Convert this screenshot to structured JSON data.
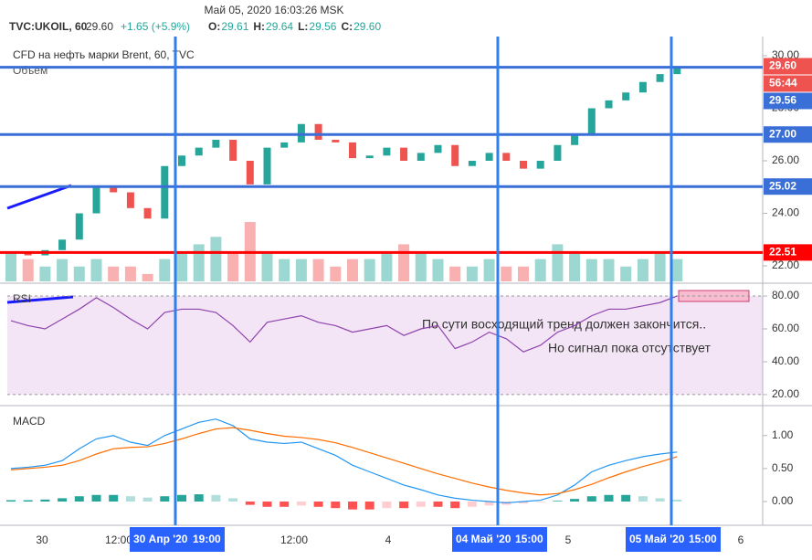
{
  "header": {
    "datetime": "Май 05, 2020 16:03:26 MSK",
    "symbol": "TVC:UKOIL, 60",
    "last": "29.60",
    "change": "+1.65 (+5.9%)",
    "ohlc": [
      {
        "key": "O:",
        "value": "29.61"
      },
      {
        "key": "H:",
        "value": "29.64"
      },
      {
        "key": "L:",
        "value": "29.56"
      },
      {
        "key": "C:",
        "value": "29.60"
      }
    ]
  },
  "price": {
    "title": "CFD на нефть марки Brent, 60, TVC",
    "volume_title": "Объем",
    "ylim": [
      21.41,
      30.73
    ],
    "yticks": [
      {
        "value": 30,
        "label": "30.00"
      },
      {
        "value": 28,
        "label": "28.00"
      },
      {
        "value": 26,
        "label": "26.00"
      },
      {
        "value": 24,
        "label": "24.00"
      },
      {
        "value": 22,
        "label": "22.00"
      }
    ],
    "up_color": "#26a69a",
    "down_color": "#ef5350",
    "close": [
      22.5,
      22.4,
      22.6,
      23.0,
      24.0,
      25.0,
      24.8,
      24.2,
      23.8,
      25.8,
      26.2,
      26.5,
      26.8,
      26.0,
      25.1,
      26.5,
      26.7,
      27.4,
      26.8,
      26.7,
      26.1,
      26.2,
      26.5,
      26.0,
      26.3,
      26.6,
      25.8,
      26.0,
      26.3,
      26.0,
      25.7,
      26.0,
      26.6,
      27.0,
      28.0,
      28.3,
      28.6,
      29.0,
      29.3,
      29.6
    ],
    "volume": [
      4,
      3,
      2,
      3,
      2,
      3,
      2,
      2,
      1,
      3,
      4,
      5,
      6,
      4,
      8,
      4,
      3,
      3,
      3,
      2,
      3,
      3,
      4,
      5,
      4,
      3,
      2,
      2,
      3,
      2,
      2,
      3,
      5,
      4,
      3,
      3,
      2,
      3,
      4,
      3
    ],
    "volume_ylim": [
      0,
      33
    ],
    "last": {
      "value": 29.6,
      "label": "29.60",
      "color": "#ef5350"
    },
    "countdown": "56:44",
    "levels": [
      {
        "value": 29.56,
        "label": "29.56",
        "color": "#3a6fd8"
      },
      {
        "value": 27,
        "label": "27.00",
        "color": "#3a6fd8"
      },
      {
        "value": 25.02,
        "label": "25.02",
        "color": "#3a6fd8"
      },
      {
        "value": 22.51,
        "label": "22.51",
        "color": "#ff0000"
      }
    ]
  },
  "rsi": {
    "title": "RSI",
    "ylim": [
      14.4,
      86.7
    ],
    "color": "#8e44ad",
    "yticks": [
      {
        "value": 80,
        "label": "80.00"
      },
      {
        "value": 60,
        "label": "60.00"
      },
      {
        "value": 40,
        "label": "40.00"
      },
      {
        "value": 20,
        "label": "20.00"
      }
    ],
    "values": [
      65,
      62,
      60,
      66,
      72,
      79,
      73,
      66,
      60,
      70,
      72,
      72,
      70,
      62,
      52,
      64,
      66,
      68,
      64,
      62,
      58,
      60,
      62,
      56,
      60,
      62,
      48,
      52,
      58,
      54,
      46,
      50,
      58,
      62,
      68,
      72,
      72,
      74,
      76,
      80
    ]
  },
  "macd": {
    "title": "MACD",
    "ylim": [
      -0.36,
      1.44
    ],
    "yticks": [
      {
        "value": 1,
        "label": "1.00"
      },
      {
        "value": 0.5,
        "label": "0.50"
      },
      {
        "value": 0,
        "label": "0.00"
      }
    ],
    "macd": {
      "color": "#2196f3",
      "values": [
        0.5,
        0.52,
        0.55,
        0.62,
        0.8,
        0.95,
        1.0,
        0.9,
        0.85,
        1.0,
        1.1,
        1.2,
        1.25,
        1.15,
        0.95,
        0.9,
        0.88,
        0.9,
        0.8,
        0.7,
        0.55,
        0.45,
        0.35,
        0.25,
        0.18,
        0.1,
        0.05,
        0.02,
        0,
        -0.02,
        0,
        0.02,
        0.1,
        0.25,
        0.45,
        0.55,
        0.62,
        0.68,
        0.72,
        0.75
      ]
    },
    "signal": {
      "color": "#ff6d00",
      "values": [
        0.48,
        0.5,
        0.52,
        0.55,
        0.62,
        0.72,
        0.8,
        0.82,
        0.83,
        0.88,
        0.95,
        1.03,
        1.1,
        1.12,
        1.08,
        1.03,
        0.99,
        0.97,
        0.94,
        0.89,
        0.82,
        0.74,
        0.66,
        0.58,
        0.5,
        0.42,
        0.35,
        0.28,
        0.22,
        0.17,
        0.13,
        0.1,
        0.12,
        0.18,
        0.26,
        0.36,
        0.45,
        0.53,
        0.6,
        0.68
      ]
    },
    "histogram": [
      0.02,
      0.02,
      0.03,
      0.05,
      0.08,
      0.1,
      0.1,
      0.08,
      0.06,
      0.08,
      0.1,
      0.11,
      0.1,
      0.05,
      -0.05,
      -0.08,
      -0.08,
      -0.06,
      -0.08,
      -0.1,
      -0.12,
      -0.12,
      -0.1,
      -0.1,
      -0.08,
      -0.08,
      -0.1,
      -0.08,
      -0.06,
      -0.05,
      -0.03,
      -0.01,
      0.01,
      0.04,
      0.08,
      0.1,
      0.1,
      0.08,
      0.05,
      0.03
    ]
  },
  "time_axis": {
    "labels": [
      "30",
      "12:00",
      "12:00",
      "4",
      "5",
      "6"
    ],
    "markers": [
      {
        "date": "30 Апр '20",
        "time": "19:00"
      },
      {
        "date": "04 Май '20",
        "time": "15:00"
      },
      {
        "date": "05 Май '20",
        "time": "15:00"
      }
    ]
  },
  "annotations": [
    "По сути восходящий тренд должен закончится..",
    "Но сигнал пока отсутствует"
  ]
}
